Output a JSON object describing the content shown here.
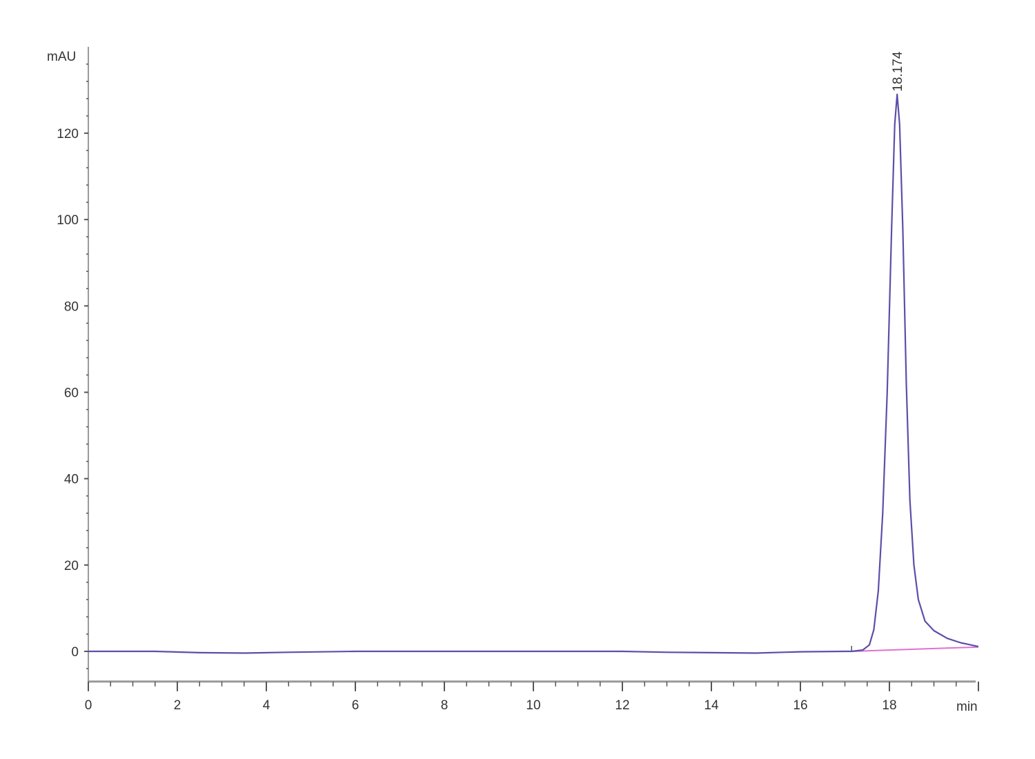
{
  "chart_data": {
    "type": "line",
    "title": "",
    "xlabel": "min",
    "ylabel": "mAU",
    "xlim": [
      0,
      20
    ],
    "ylim": [
      -7,
      140
    ],
    "x_ticks": [
      0,
      2,
      4,
      6,
      8,
      10,
      12,
      14,
      16,
      18
    ],
    "y_ticks": [
      0,
      20,
      40,
      60,
      80,
      100,
      120
    ],
    "grid": false,
    "colors": {
      "signal": "#5a4fa8",
      "baseline": "#e070d0",
      "axis": "#999999"
    },
    "peak_label": {
      "text": "18.174",
      "x": 18.174,
      "y": 129
    },
    "series": [
      {
        "x": [
          0,
          1.5,
          2.5,
          3.5,
          4.5,
          6,
          8,
          10,
          12,
          13,
          14,
          15,
          16,
          17,
          17.15,
          17.4,
          17.55,
          17.65,
          17.75,
          17.85,
          17.95,
          18.05,
          18.12,
          18.174,
          18.23,
          18.3,
          18.38,
          18.46,
          18.55,
          18.65,
          18.8,
          19.0,
          19.3,
          19.6,
          20
        ],
        "y": [
          0,
          0,
          -0.3,
          -0.4,
          -0.2,
          0,
          0,
          0,
          0,
          -0.2,
          -0.3,
          -0.4,
          -0.1,
          0,
          0,
          0.3,
          1.5,
          5,
          14,
          32,
          60,
          98,
          122,
          129,
          122,
          98,
          62,
          35,
          20,
          12,
          7,
          4.8,
          3,
          2,
          1.1
        ]
      }
    ],
    "baseline": {
      "x": [
        17.15,
        20
      ],
      "y": [
        0,
        1.0
      ]
    }
  }
}
